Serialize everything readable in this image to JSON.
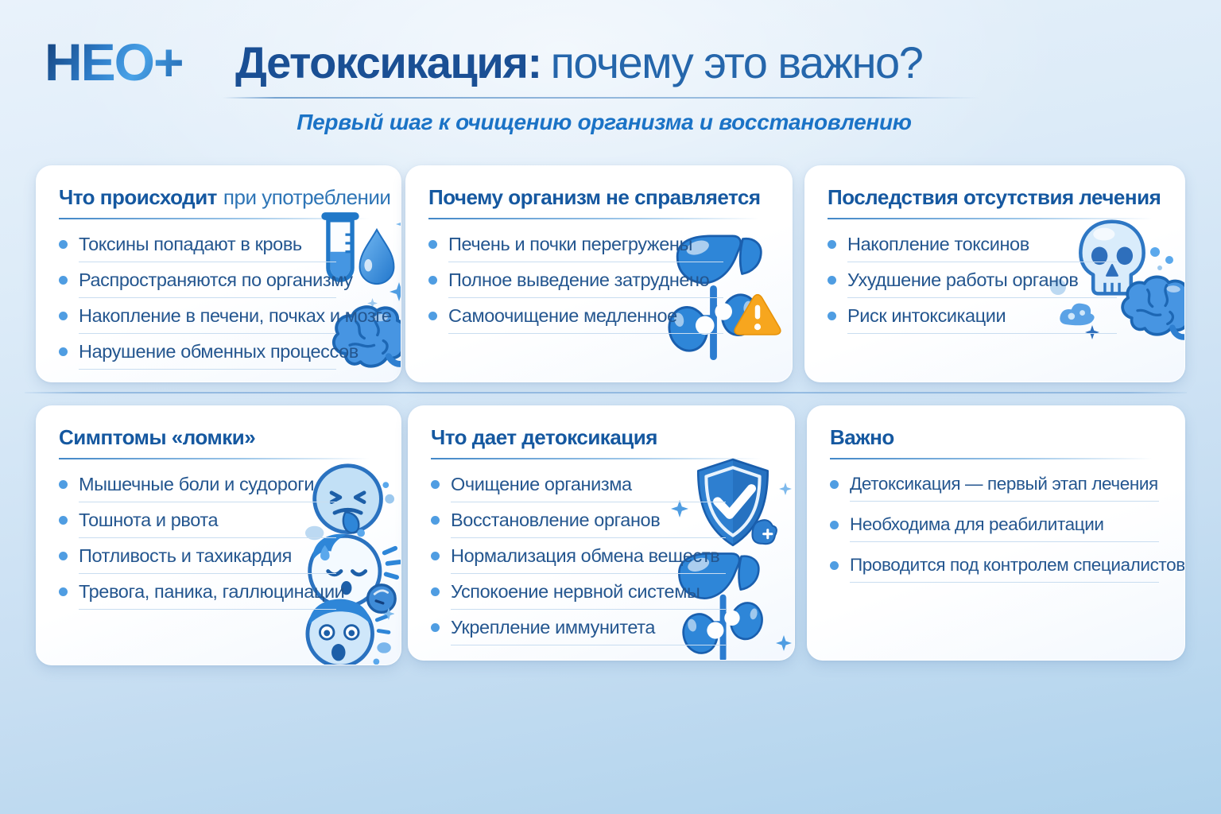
{
  "header": {
    "logo": "НЕО+",
    "title_bold": "Детоксикация:",
    "title_regular": "почему это важно?",
    "subtitle": "Первый шаг к очищению организма и восстановлению"
  },
  "colors": {
    "accent_blue": "#2e86d8",
    "dark_blue": "#1a4f94",
    "heading_blue": "#1558a0",
    "bullet_text": "#24568f",
    "bullet_dot": "#4f9de2",
    "warning_orange": "#f7a61e",
    "background_top": "#e9f2fb",
    "background_bottom": "#aed2ec"
  },
  "cards": [
    {
      "title_bold": "Что происходит",
      "title_regular": "при употреблении",
      "items": [
        "Токсины попадают в кровь",
        "Распространяются по организму",
        "Накопление в печени, почках и мозге",
        "Нарушение обменных процессов"
      ],
      "icons": [
        "test-tube-icon",
        "water-drop-icon",
        "sparkle-icon",
        "brain-icon"
      ]
    },
    {
      "title_bold": "Почему организм не справляется",
      "title_regular": "",
      "items": [
        "Печень и почки перегружены",
        "Полное выведение затруднено",
        "Самоочищение медленное"
      ],
      "icons": [
        "liver-icon",
        "kidneys-icon",
        "warning-triangle-icon"
      ]
    },
    {
      "title_bold": "Последствия отсутствия лечения",
      "title_regular": "",
      "items": [
        "Накопление токсинов",
        "Ухудшение работы органов",
        "Риск интоксикации"
      ],
      "icons": [
        "skull-icon",
        "brain-icon",
        "toxin-cloud-icon",
        "sparkle-icon"
      ]
    },
    {
      "title_bold": "Симптомы «ломки»",
      "title_regular": "",
      "items": [
        "Мышечные боли и судороги",
        "Тошнота и рвота",
        "Потливость и тахикардия",
        "Тревога, паника, галлюцинации"
      ],
      "icons": [
        "nauseated-face-icon",
        "sweating-face-icon",
        "anxious-face-icon"
      ]
    },
    {
      "title_bold": "Что дает детоксикация",
      "title_regular": "",
      "items": [
        "Очищение организма",
        "Восстановление органов",
        "Нормализация обмена веществ",
        "Успокоение нервной системы",
        "Укрепление иммунитета"
      ],
      "icons": [
        "shield-check-icon",
        "liver-icon",
        "kidneys-icon",
        "sparkle-icon"
      ]
    },
    {
      "title_bold": "Важно",
      "title_regular": "",
      "items": [
        "Детоксикация — первый этап лечения",
        "Необходима для реабилитации",
        "Проводится под контролем специалистов"
      ],
      "icons": []
    }
  ]
}
